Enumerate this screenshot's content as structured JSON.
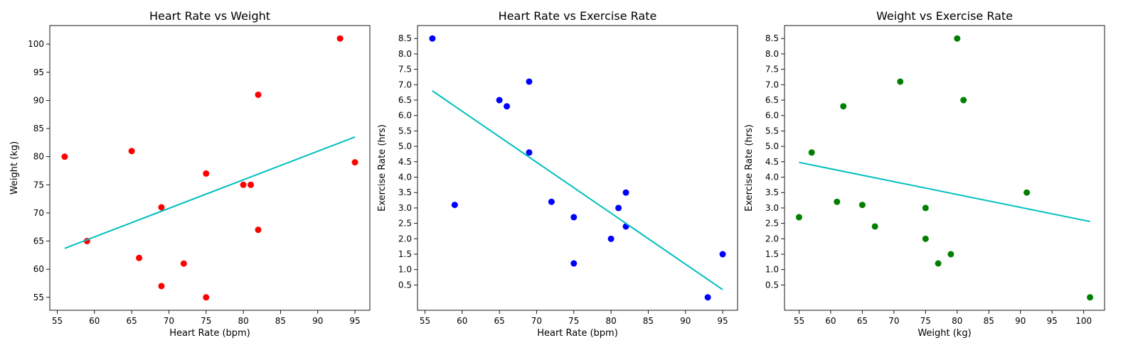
{
  "chart_data": [
    {
      "type": "scatter",
      "title": "Heart Rate vs Weight",
      "xlabel": "Heart Rate (bpm)",
      "ylabel": "Weight (kg)",
      "xlim": [
        54,
        97
      ],
      "ylim": [
        52.7,
        103.3
      ],
      "xticks": [
        55,
        60,
        65,
        70,
        75,
        80,
        85,
        90,
        95
      ],
      "yticks": [
        55,
        60,
        65,
        70,
        75,
        80,
        85,
        90,
        95,
        100
      ],
      "grid": false,
      "point_color": "#ff0000",
      "line_color": "#00bfbf",
      "points": [
        {
          "x": 56,
          "y": 80
        },
        {
          "x": 59,
          "y": 65
        },
        {
          "x": 65,
          "y": 81
        },
        {
          "x": 66,
          "y": 62
        },
        {
          "x": 69,
          "y": 71
        },
        {
          "x": 69,
          "y": 57
        },
        {
          "x": 72,
          "y": 61
        },
        {
          "x": 75,
          "y": 77
        },
        {
          "x": 75,
          "y": 55
        },
        {
          "x": 80,
          "y": 75
        },
        {
          "x": 81,
          "y": 75
        },
        {
          "x": 82,
          "y": 91
        },
        {
          "x": 82,
          "y": 67
        },
        {
          "x": 93,
          "y": 101
        },
        {
          "x": 95,
          "y": 79
        }
      ],
      "trendline": {
        "x": [
          56,
          95
        ],
        "y": [
          63.7,
          83.5
        ]
      }
    },
    {
      "type": "scatter",
      "title": "Heart Rate vs Exercise Rate",
      "xlabel": "Heart Rate (bpm)",
      "ylabel": "Exercise Rate (hrs)",
      "xlim": [
        54,
        97
      ],
      "ylim": [
        -0.32,
        8.92
      ],
      "xticks": [
        55,
        60,
        65,
        70,
        75,
        80,
        85,
        90,
        95
      ],
      "yticks": [
        0.5,
        1.0,
        1.5,
        2.0,
        2.5,
        3.0,
        3.5,
        4.0,
        4.5,
        5.0,
        5.5,
        6.0,
        6.5,
        7.0,
        7.5,
        8.0,
        8.5
      ],
      "ytick_labels": [
        "0.5",
        "1.0",
        "1.5",
        "2.0",
        "2.5",
        "3.0",
        "3.5",
        "4.0",
        "4.5",
        "5.0",
        "5.5",
        "6.0",
        "6.5",
        "7.0",
        "7.5",
        "8.0",
        "8.5"
      ],
      "grid": false,
      "point_color": "#0000ff",
      "line_color": "#00bfbf",
      "points": [
        {
          "x": 56,
          "y": 8.5
        },
        {
          "x": 59,
          "y": 3.1
        },
        {
          "x": 65,
          "y": 6.5
        },
        {
          "x": 66,
          "y": 6.3
        },
        {
          "x": 69,
          "y": 7.1
        },
        {
          "x": 69,
          "y": 4.8
        },
        {
          "x": 72,
          "y": 3.2
        },
        {
          "x": 75,
          "y": 2.7
        },
        {
          "x": 75,
          "y": 1.2
        },
        {
          "x": 80,
          "y": 2.0
        },
        {
          "x": 81,
          "y": 3.0
        },
        {
          "x": 82,
          "y": 3.5
        },
        {
          "x": 82,
          "y": 2.4
        },
        {
          "x": 93,
          "y": 0.1
        },
        {
          "x": 95,
          "y": 1.5
        }
      ],
      "trendline": {
        "x": [
          56,
          95
        ],
        "y": [
          6.8,
          0.35
        ]
      }
    },
    {
      "type": "scatter",
      "title": "Weight vs Exercise Rate",
      "xlabel": "Weight (kg)",
      "ylabel": "Exercise Rate (hrs)",
      "xlim": [
        52.7,
        103.3
      ],
      "ylim": [
        -0.32,
        8.92
      ],
      "xticks": [
        55,
        60,
        65,
        70,
        75,
        80,
        85,
        90,
        95,
        100
      ],
      "yticks": [
        0.5,
        1.0,
        1.5,
        2.0,
        2.5,
        3.0,
        3.5,
        4.0,
        4.5,
        5.0,
        5.5,
        6.0,
        6.5,
        7.0,
        7.5,
        8.0,
        8.5
      ],
      "ytick_labels": [
        "0.5",
        "1.0",
        "1.5",
        "2.0",
        "2.5",
        "3.0",
        "3.5",
        "4.0",
        "4.5",
        "5.0",
        "5.5",
        "6.0",
        "6.5",
        "7.0",
        "7.5",
        "8.0",
        "8.5"
      ],
      "grid": false,
      "point_color": "#008000",
      "line_color": "#00bfbf",
      "points": [
        {
          "x": 55,
          "y": 2.7
        },
        {
          "x": 57,
          "y": 4.8
        },
        {
          "x": 61,
          "y": 3.2
        },
        {
          "x": 62,
          "y": 6.3
        },
        {
          "x": 65,
          "y": 3.1
        },
        {
          "x": 67,
          "y": 2.4
        },
        {
          "x": 71,
          "y": 7.1
        },
        {
          "x": 75,
          "y": 3.0
        },
        {
          "x": 75,
          "y": 2.0
        },
        {
          "x": 77,
          "y": 1.2
        },
        {
          "x": 79,
          "y": 1.5
        },
        {
          "x": 80,
          "y": 8.5
        },
        {
          "x": 81,
          "y": 6.5
        },
        {
          "x": 91,
          "y": 3.5
        },
        {
          "x": 101,
          "y": 0.1
        }
      ],
      "trendline": {
        "x": [
          55,
          101
        ],
        "y": [
          4.48,
          2.56
        ]
      }
    }
  ]
}
